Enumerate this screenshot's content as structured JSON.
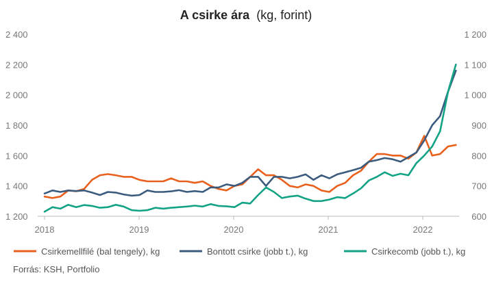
{
  "chart_data": {
    "type": "line",
    "title": "A csirke ára",
    "subtitle": "(kg, forint)",
    "x_axis": {
      "ticks": [
        "2018",
        "2019",
        "2020",
        "2021",
        "2022"
      ],
      "start": 2018.0,
      "end": 2022.35
    },
    "y_left": {
      "min": 1200,
      "max": 2400,
      "ticks": [
        "1 200",
        "1 400",
        "1 600",
        "1 800",
        "2 000",
        "2 200",
        "2 400"
      ]
    },
    "y_right": {
      "min": 600,
      "max": 1200,
      "ticks": [
        "600",
        "700",
        "800",
        "900",
        "1 000",
        "1 100",
        "1 200"
      ]
    },
    "grid": false,
    "legend_position": "bottom",
    "series": [
      {
        "name": "Csirkemellfilé (bal tengely), kg",
        "axis": "left",
        "color": "#e8601c",
        "values": [
          1330,
          1320,
          1330,
          1370,
          1365,
          1380,
          1440,
          1470,
          1478,
          1470,
          1460,
          1460,
          1440,
          1430,
          1430,
          1430,
          1450,
          1430,
          1430,
          1420,
          1430,
          1400,
          1380,
          1370,
          1400,
          1410,
          1460,
          1510,
          1470,
          1470,
          1440,
          1400,
          1390,
          1410,
          1400,
          1370,
          1360,
          1400,
          1420,
          1470,
          1500,
          1560,
          1610,
          1610,
          1600,
          1600,
          1580,
          1620,
          1730,
          1600,
          1610,
          1660,
          1670
        ]
      },
      {
        "name": "Bontott csirke (jobb t.), kg",
        "axis": "right",
        "color": "#3b5b7e",
        "values": [
          675,
          685,
          680,
          685,
          683,
          685,
          678,
          670,
          680,
          678,
          672,
          668,
          670,
          685,
          680,
          680,
          682,
          686,
          680,
          683,
          680,
          695,
          695,
          705,
          700,
          710,
          730,
          730,
          700,
          730,
          730,
          725,
          730,
          738,
          720,
          735,
          725,
          738,
          745,
          752,
          760,
          780,
          785,
          792,
          788,
          780,
          795,
          810,
          850,
          900,
          930,
          1010,
          1080
        ]
      },
      {
        "name": "Csirkecomb (jobb t.), kg",
        "axis": "right",
        "color": "#12a385",
        "values": [
          615,
          630,
          625,
          638,
          630,
          637,
          634,
          628,
          630,
          638,
          632,
          620,
          618,
          620,
          628,
          625,
          628,
          630,
          632,
          635,
          632,
          640,
          634,
          633,
          630,
          645,
          642,
          670,
          695,
          680,
          660,
          665,
          668,
          658,
          650,
          650,
          655,
          663,
          660,
          675,
          692,
          718,
          730,
          745,
          733,
          740,
          735,
          775,
          800,
          830,
          880,
          1010,
          1100
        ]
      }
    ]
  },
  "footer": {
    "source": "Forrás: KSH, Portfolio"
  }
}
